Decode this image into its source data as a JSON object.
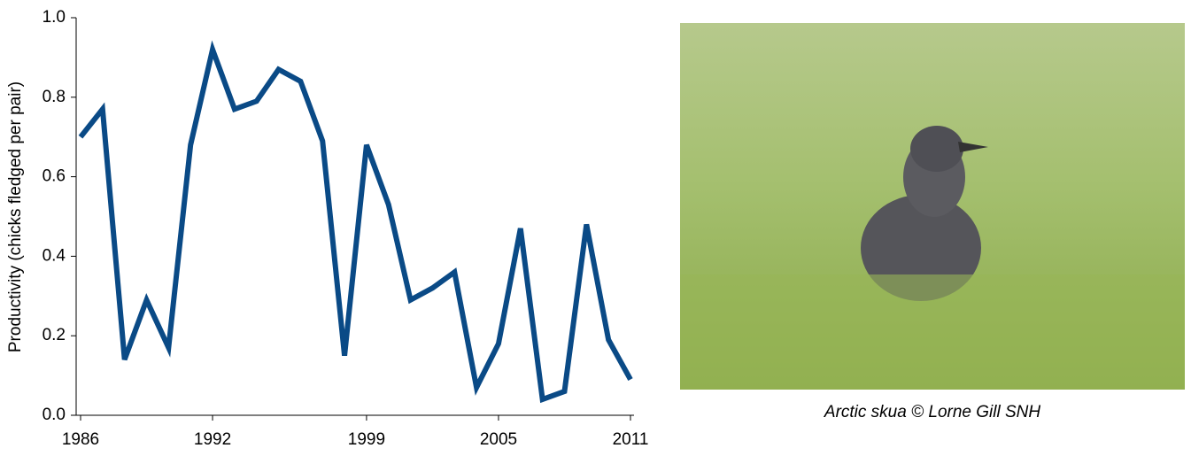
{
  "chart_data": {
    "type": "line",
    "y_label": "Productivity (chicks fledged per pair)",
    "x": [
      1986,
      1987,
      1988,
      1989,
      1990,
      1991,
      1992,
      1993,
      1994,
      1995,
      1996,
      1997,
      1998,
      1999,
      2000,
      2001,
      2002,
      2003,
      2004,
      2005,
      2006,
      2007,
      2008,
      2009,
      2010,
      2011
    ],
    "values": [
      0.7,
      0.77,
      0.14,
      0.29,
      0.17,
      0.68,
      0.92,
      0.77,
      0.79,
      0.87,
      0.84,
      0.69,
      0.15,
      0.68,
      0.53,
      0.29,
      0.32,
      0.36,
      0.07,
      0.18,
      0.47,
      0.04,
      0.06,
      0.48,
      0.19,
      0.09
    ],
    "color": "#0a4a86",
    "xlim": [
      1986,
      2011
    ],
    "xticks": [
      1986,
      1992,
      1999,
      2005,
      2011
    ],
    "ylim": [
      0,
      1
    ],
    "yticks": [
      {
        "value": 0,
        "label": "0.0"
      },
      0.2,
      0.4,
      0.6,
      0.8,
      {
        "value": 1,
        "label": "1.0"
      }
    ]
  },
  "photo": {
    "caption": "Arctic skua © Lorne Gill SNH"
  }
}
